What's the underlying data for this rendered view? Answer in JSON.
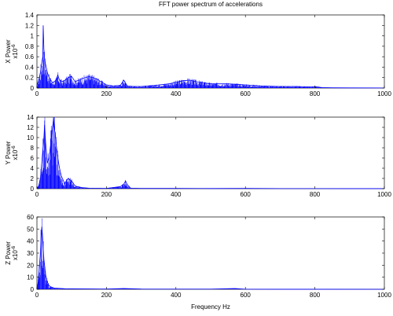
{
  "figure": {
    "title": "FFT power spectrum of accelerations",
    "xlabel": "Frequency Hz"
  },
  "chart_data": [
    {
      "type": "area",
      "title": "FFT power spectrum of accelerations",
      "ylabel": "X Power",
      "y_exponent_prefix": "x10",
      "y_exponent": "-6",
      "xlim": [
        0,
        1000
      ],
      "ylim": [
        0,
        1.4
      ],
      "xticks": [
        "0",
        "200",
        "400",
        "600",
        "800",
        "1000"
      ],
      "yticks": [
        "0",
        "0.2",
        "0.4",
        "0.6",
        "0.8",
        "1",
        "1.2",
        "1.4"
      ],
      "grid": false,
      "color": "#0000ff",
      "series": [
        {
          "x": [
            0,
            5,
            10,
            14,
            17,
            18,
            20,
            22,
            25,
            30,
            35,
            45,
            55,
            60,
            65,
            75,
            90,
            100,
            110,
            130,
            150,
            170,
            200,
            220,
            240,
            250,
            260,
            280,
            300,
            340,
            380,
            420,
            440,
            460,
            500,
            550,
            600,
            650,
            700,
            750,
            790,
            800,
            820,
            850,
            900,
            1000
          ],
          "y": [
            0.05,
            0.15,
            0.3,
            0.5,
            0.6,
            1.2,
            0.75,
            0.55,
            0.45,
            0.3,
            0.2,
            0.1,
            0.15,
            0.25,
            0.15,
            0.12,
            0.2,
            0.22,
            0.12,
            0.18,
            0.22,
            0.18,
            0.06,
            0.04,
            0.05,
            0.15,
            0.04,
            0.03,
            0.03,
            0.05,
            0.08,
            0.14,
            0.15,
            0.12,
            0.08,
            0.08,
            0.06,
            0.04,
            0.03,
            0.03,
            0.02,
            0.03,
            0.01,
            0.005,
            0.003,
            0.002
          ]
        }
      ]
    },
    {
      "type": "area",
      "ylabel": "Y Power",
      "y_exponent_prefix": "x10",
      "y_exponent": "-6",
      "xlim": [
        0,
        1000
      ],
      "ylim": [
        0,
        14
      ],
      "xticks": [
        "0",
        "200",
        "400",
        "600",
        "800",
        "1000"
      ],
      "yticks": [
        "0",
        "2",
        "4",
        "6",
        "8",
        "10",
        "12",
        "14"
      ],
      "grid": false,
      "color": "#0000ff",
      "series": [
        {
          "x": [
            0,
            5,
            10,
            15,
            20,
            22,
            25,
            30,
            35,
            40,
            45,
            48,
            50,
            55,
            60,
            65,
            70,
            80,
            90,
            100,
            110,
            130,
            150,
            200,
            240,
            250,
            255,
            260,
            270,
            300,
            400,
            500,
            600,
            700,
            800,
            900,
            1000
          ],
          "y": [
            0.1,
            0.5,
            2,
            6,
            10,
            12.5,
            9,
            5,
            6,
            9,
            12,
            13.8,
            12,
            9,
            6,
            4,
            2.5,
            1,
            2,
            1.5,
            0.5,
            0.2,
            0.1,
            0.05,
            0.4,
            0.9,
            1.5,
            0.8,
            0.1,
            0.05,
            0.05,
            0.03,
            0.05,
            0.02,
            0.02,
            0.01,
            0.01
          ]
        }
      ]
    },
    {
      "type": "area",
      "ylabel": "Z Power",
      "y_exponent_prefix": "x10",
      "y_exponent": "-6",
      "xlabel": "Frequency Hz",
      "xlim": [
        0,
        1000
      ],
      "ylim": [
        0,
        60
      ],
      "xticks": [
        "0",
        "200",
        "400",
        "600",
        "800",
        "1000"
      ],
      "yticks": [
        "0",
        "10",
        "20",
        "30",
        "40",
        "50",
        "60"
      ],
      "grid": false,
      "color": "#0000ff",
      "series": [
        {
          "x": [
            0,
            3,
            6,
            10,
            12,
            14,
            16,
            18,
            20,
            25,
            30,
            35,
            40,
            50,
            60,
            80,
            100,
            150,
            200,
            250,
            300,
            400,
            500,
            570,
            600,
            700,
            800,
            1000
          ],
          "y": [
            0.5,
            5,
            15,
            30,
            43,
            52,
            45,
            35,
            25,
            12,
            6,
            3,
            2,
            1,
            0.8,
            0.5,
            0.4,
            0.3,
            0.2,
            0.6,
            0.2,
            0.15,
            0.15,
            0.6,
            0.1,
            0.05,
            0.05,
            0.02
          ]
        }
      ]
    }
  ]
}
